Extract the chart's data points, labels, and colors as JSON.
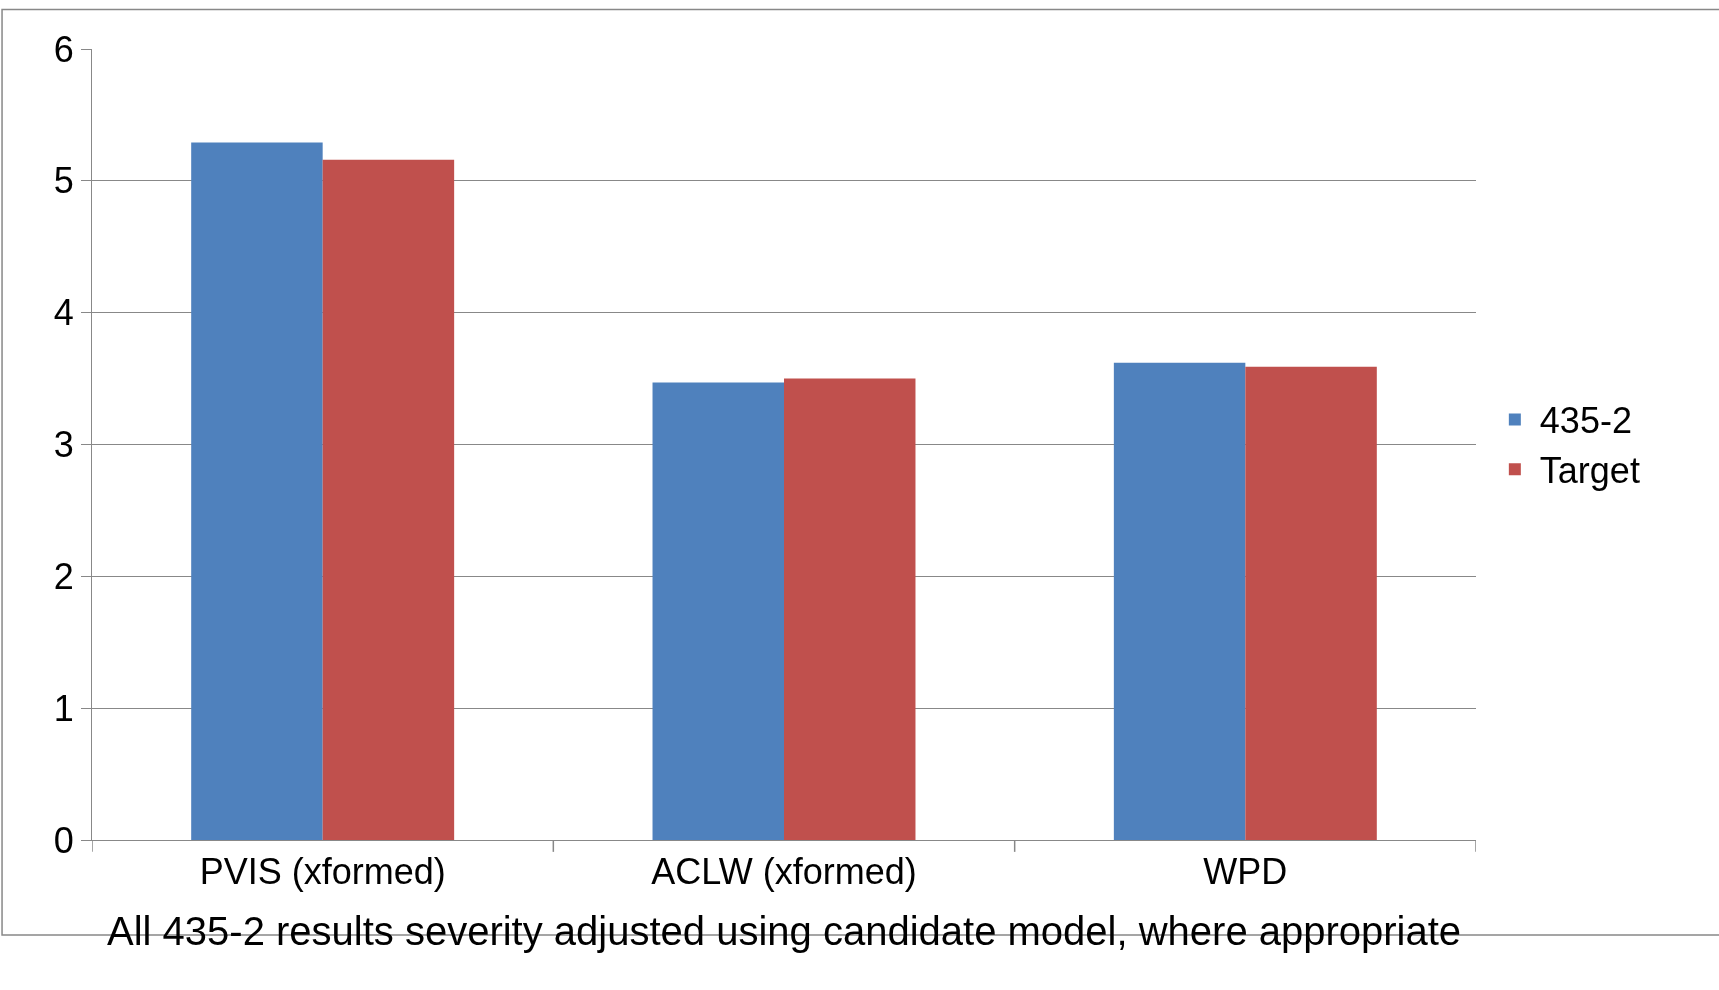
{
  "chart_data": {
    "type": "bar",
    "categories": [
      "PVIS (xformed)",
      "ACLW (xformed)",
      "WPD"
    ],
    "series": [
      {
        "name": "435-2",
        "color": "#4f81bd",
        "values": [
          5.29,
          3.47,
          3.62
        ]
      },
      {
        "name": "Target",
        "color": "#c0504d",
        "values": [
          5.16,
          3.5,
          3.59
        ]
      }
    ],
    "ylim": [
      0,
      6
    ],
    "yticks": [
      0,
      1,
      2,
      3,
      4,
      5,
      6
    ],
    "grid": "y",
    "legend": "right",
    "annotations": [
      "All 435-2 results severity adjusted using candidate model, where appropriate"
    ]
  }
}
